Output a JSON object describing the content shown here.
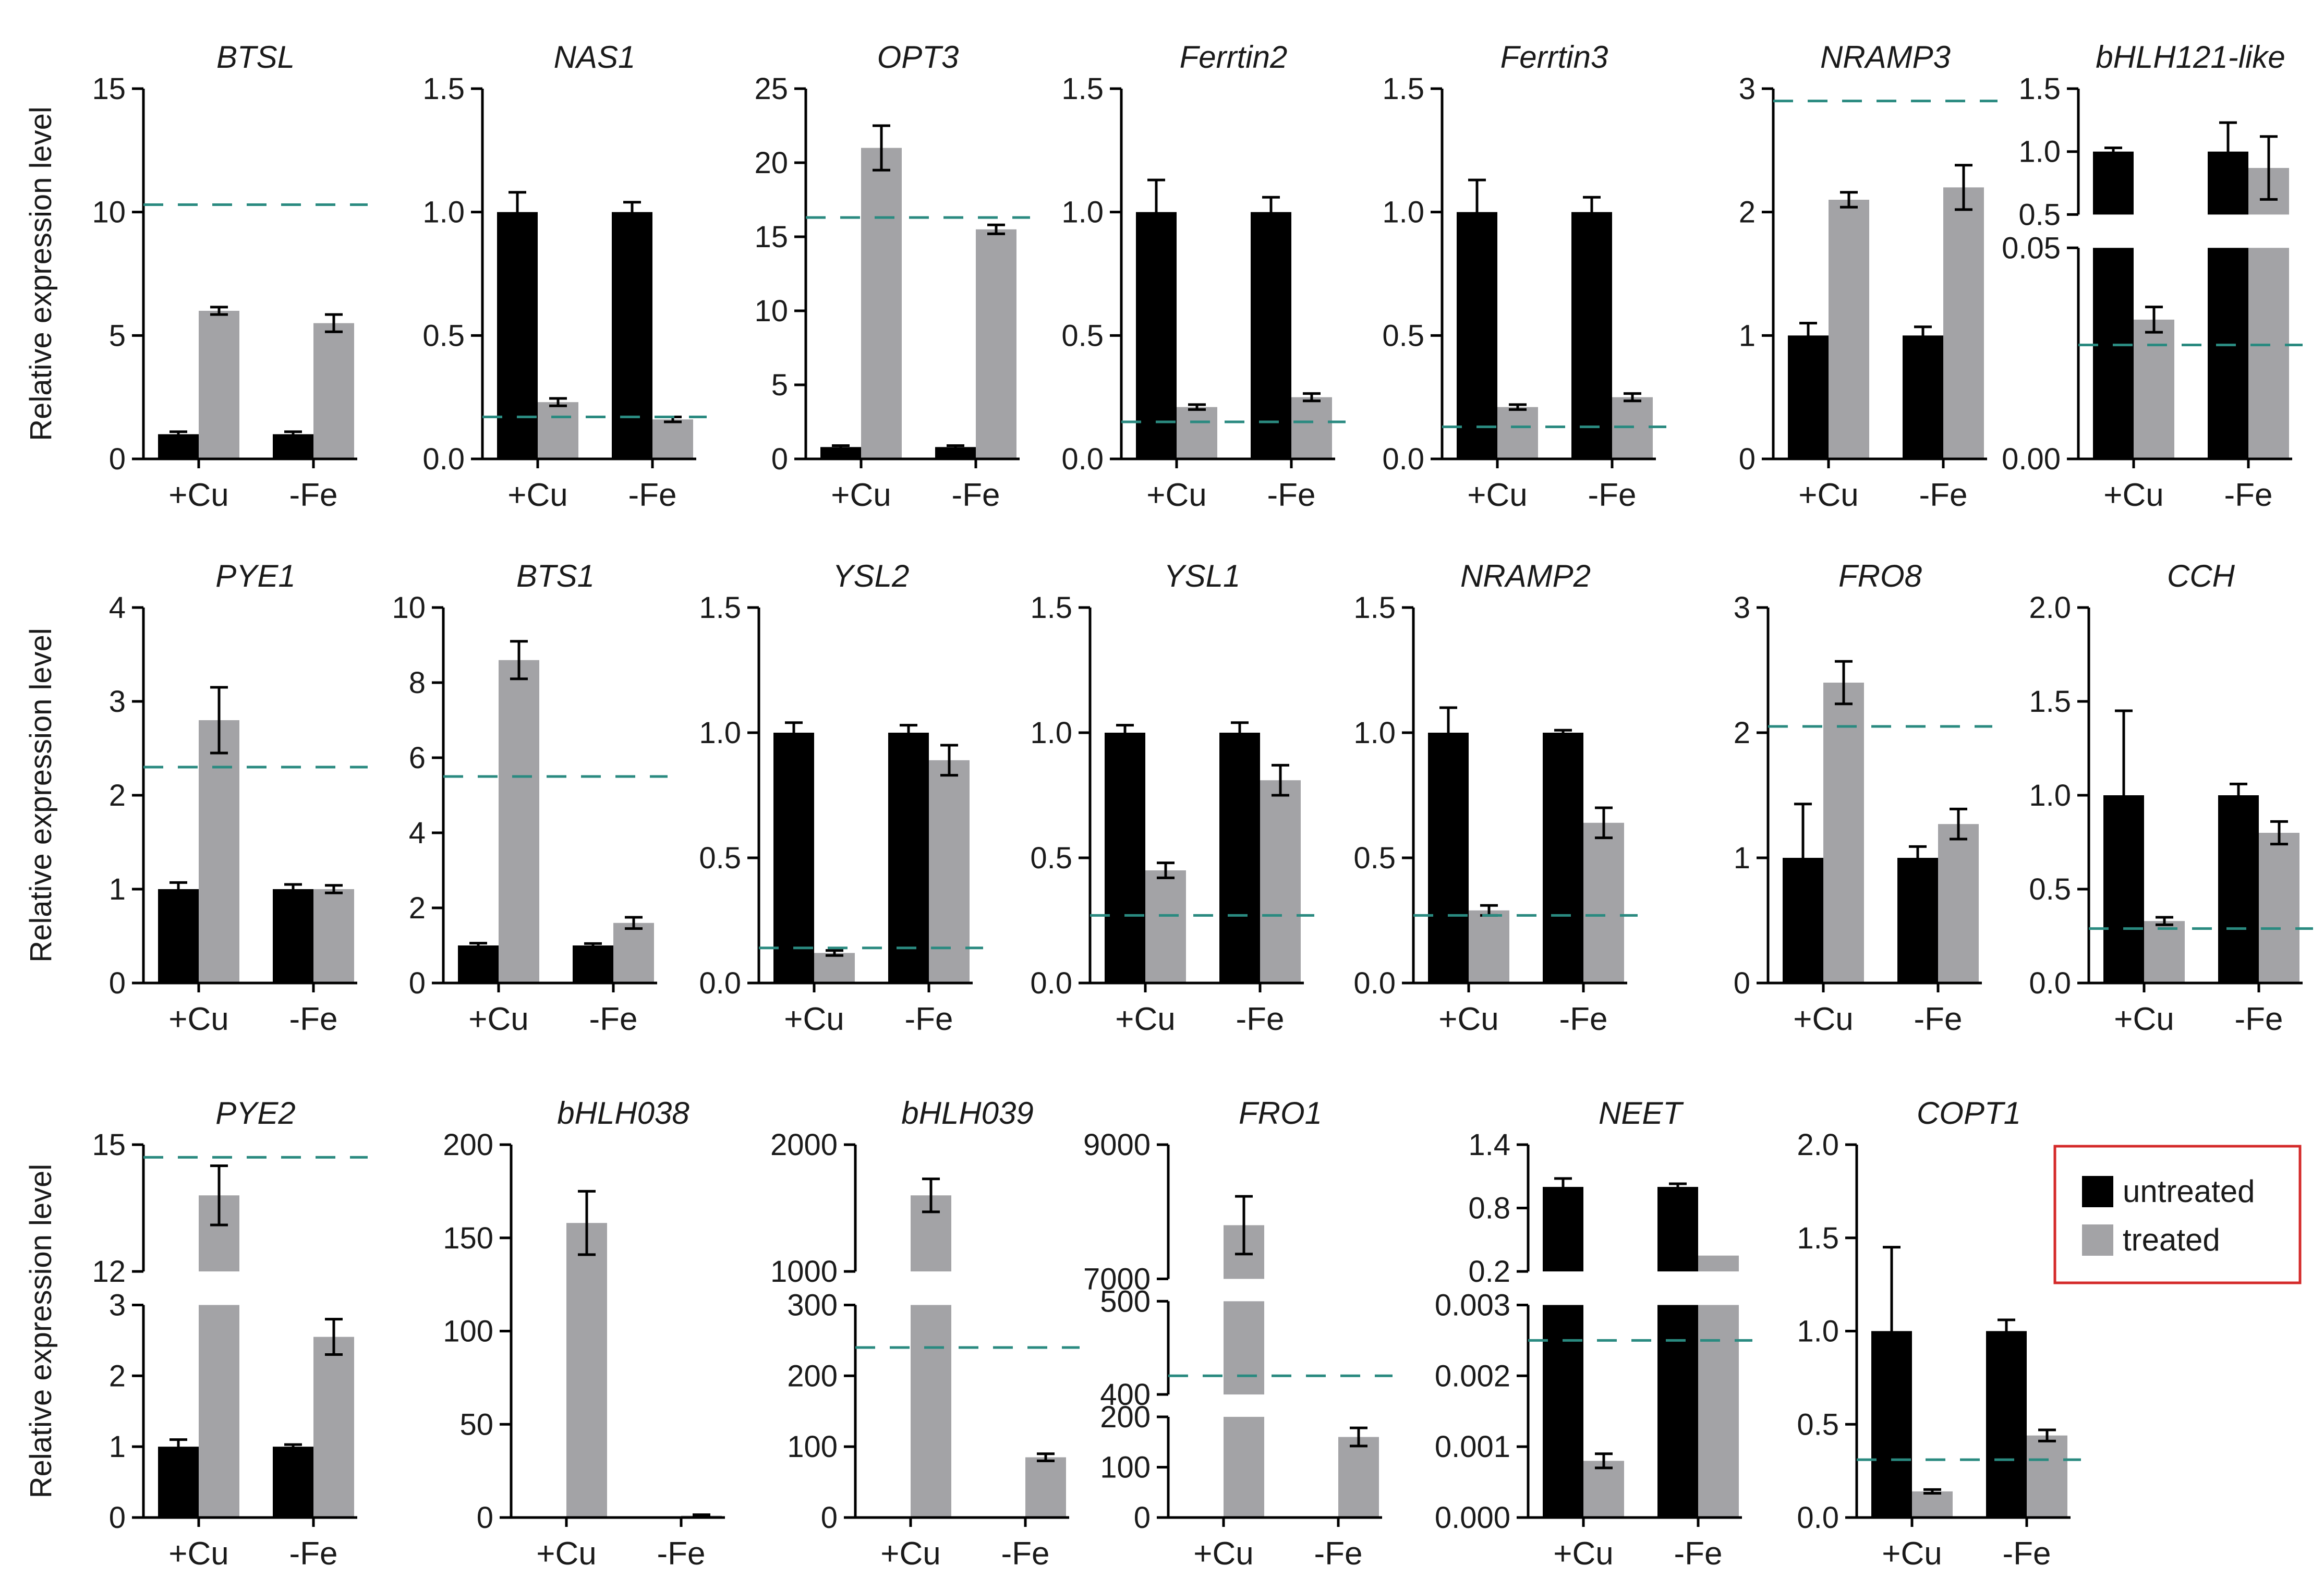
{
  "figure": {
    "ylabel": "Relative expression level",
    "legend": {
      "items": [
        "untreated",
        "treated"
      ]
    },
    "colors": {
      "untreated": "#000000",
      "treated": "#a3a3a6",
      "dash": "#2a8a80",
      "legend_border": "#d42a2a"
    },
    "categories": [
      "+Cu",
      "-Fe"
    ]
  },
  "chart_data": [
    {
      "type": "bar",
      "title": "BTSL",
      "categories": [
        "+Cu",
        "-Fe"
      ],
      "series": [
        {
          "name": "untreated",
          "values": [
            1,
            1
          ],
          "err": [
            0.1,
            0.1
          ]
        },
        {
          "name": "treated",
          "values": [
            6.0,
            5.5
          ],
          "err": [
            0.15,
            0.35
          ]
        }
      ],
      "ylim": [
        0,
        15
      ],
      "ticks": [
        "0",
        "5",
        "10",
        "15"
      ],
      "reference_line": 10.3,
      "ylabel": "Relative expression level"
    },
    {
      "type": "bar",
      "title": "NAS1",
      "categories": [
        "+Cu",
        "-Fe"
      ],
      "series": [
        {
          "name": "untreated",
          "values": [
            1.0,
            1.0
          ],
          "err": [
            0.08,
            0.04
          ]
        },
        {
          "name": "treated",
          "values": [
            0.23,
            0.16
          ],
          "err": [
            0.015,
            0.01
          ]
        }
      ],
      "ylim": [
        0,
        1.5
      ],
      "ticks": [
        "0.0",
        "0.5",
        "1.0",
        "1.5"
      ],
      "reference_line": 0.17
    },
    {
      "type": "bar",
      "title": "OPT3",
      "categories": [
        "+Cu",
        "-Fe"
      ],
      "series": [
        {
          "name": "untreated",
          "values": [
            0.8,
            0.8
          ],
          "err": [
            0.1,
            0.1
          ]
        },
        {
          "name": "treated",
          "values": [
            21,
            15.5
          ],
          "err": [
            1.5,
            0.3
          ]
        }
      ],
      "ylim": [
        0,
        25
      ],
      "ticks": [
        "0",
        "5",
        "10",
        "15",
        "20",
        "25"
      ],
      "reference_line": 16.3
    },
    {
      "type": "bar",
      "title": "Ferrtin2",
      "categories": [
        "+Cu",
        "-Fe"
      ],
      "series": [
        {
          "name": "untreated",
          "values": [
            1.0,
            1.0
          ],
          "err": [
            0.13,
            0.06
          ]
        },
        {
          "name": "treated",
          "values": [
            0.21,
            0.25
          ],
          "err": [
            0.01,
            0.015
          ]
        }
      ],
      "ylim": [
        0,
        1.5
      ],
      "ticks": [
        "0.0",
        "0.5",
        "1.0",
        "1.5"
      ],
      "reference_line": 0.15
    },
    {
      "type": "bar",
      "title": "Ferrtin3",
      "categories": [
        "+Cu",
        "-Fe"
      ],
      "series": [
        {
          "name": "untreated",
          "values": [
            1.0,
            1.0
          ],
          "err": [
            0.13,
            0.06
          ]
        },
        {
          "name": "treated",
          "values": [
            0.21,
            0.25
          ],
          "err": [
            0.01,
            0.015
          ]
        }
      ],
      "ylim": [
        0,
        1.5
      ],
      "ticks": [
        "0.0",
        "0.5",
        "1.0",
        "1.5"
      ],
      "reference_line": 0.13
    },
    {
      "type": "bar",
      "title": "NRAMP3",
      "categories": [
        "+Cu",
        "-Fe"
      ],
      "series": [
        {
          "name": "untreated",
          "values": [
            1.0,
            1.0
          ],
          "err": [
            0.1,
            0.07
          ]
        },
        {
          "name": "treated",
          "values": [
            2.1,
            2.2
          ],
          "err": [
            0.06,
            0.18
          ]
        }
      ],
      "ylim": [
        0,
        3
      ],
      "ticks": [
        "0",
        "1",
        "2",
        "3"
      ],
      "reference_line": 2.9
    },
    {
      "type": "bar",
      "title": "bHLH121-like",
      "categories": [
        "+Cu",
        "-Fe"
      ],
      "series": [
        {
          "name": "untreated",
          "values": [
            1.0,
            1.0
          ],
          "err": [
            0.03,
            0.23
          ]
        },
        {
          "name": "treated",
          "values": [
            0.033,
            0.87
          ],
          "err": [
            0.003,
            0.25
          ]
        }
      ],
      "axis_break": true,
      "ylim_lower": [
        0,
        0.05
      ],
      "ylim_upper": [
        0.5,
        1.5
      ],
      "ticks": [
        "0.00",
        "0.05",
        "0.5",
        "1.0",
        "1.5"
      ],
      "reference_line": 0.027
    },
    {
      "type": "bar",
      "title": "PYE1",
      "categories": [
        "+Cu",
        "-Fe"
      ],
      "series": [
        {
          "name": "untreated",
          "values": [
            1.0,
            1.0
          ],
          "err": [
            0.07,
            0.05
          ]
        },
        {
          "name": "treated",
          "values": [
            2.8,
            1.0
          ],
          "err": [
            0.35,
            0.04
          ]
        }
      ],
      "ylim": [
        0,
        4
      ],
      "ticks": [
        "0",
        "1",
        "2",
        "3",
        "4"
      ],
      "reference_line": 2.3,
      "ylabel": "Relative expression level"
    },
    {
      "type": "bar",
      "title": "BTS1",
      "categories": [
        "+Cu",
        "-Fe"
      ],
      "series": [
        {
          "name": "untreated",
          "values": [
            1.0,
            1.0
          ],
          "err": [
            0.06,
            0.05
          ]
        },
        {
          "name": "treated",
          "values": [
            8.6,
            1.6
          ],
          "err": [
            0.5,
            0.15
          ]
        }
      ],
      "ylim": [
        0,
        10
      ],
      "ticks": [
        "0",
        "2",
        "4",
        "6",
        "8",
        "10"
      ],
      "reference_line": 5.5
    },
    {
      "type": "bar",
      "title": "YSL2",
      "categories": [
        "+Cu",
        "-Fe"
      ],
      "series": [
        {
          "name": "untreated",
          "values": [
            1.0,
            1.0
          ],
          "err": [
            0.04,
            0.03
          ]
        },
        {
          "name": "treated",
          "values": [
            0.12,
            0.89
          ],
          "err": [
            0.01,
            0.06
          ]
        }
      ],
      "ylim": [
        0,
        1.5
      ],
      "ticks": [
        "0.0",
        "0.5",
        "1.0",
        "1.5"
      ],
      "reference_line": 0.14
    },
    {
      "type": "bar",
      "title": "YSL1",
      "categories": [
        "+Cu",
        "-Fe"
      ],
      "series": [
        {
          "name": "untreated",
          "values": [
            1.0,
            1.0
          ],
          "err": [
            0.03,
            0.04
          ]
        },
        {
          "name": "treated",
          "values": [
            0.45,
            0.81
          ],
          "err": [
            0.03,
            0.06
          ]
        }
      ],
      "ylim": [
        0,
        1.5
      ],
      "ticks": [
        "0.0",
        "0.5",
        "1.0",
        "1.5"
      ],
      "reference_line": 0.27
    },
    {
      "type": "bar",
      "title": "NRAMP2",
      "categories": [
        "+Cu",
        "-Fe"
      ],
      "series": [
        {
          "name": "untreated",
          "values": [
            1.0,
            1.0
          ],
          "err": [
            0.1,
            0.01
          ]
        },
        {
          "name": "treated",
          "values": [
            0.29,
            0.64
          ],
          "err": [
            0.02,
            0.06
          ]
        }
      ],
      "ylim": [
        0,
        1.5
      ],
      "ticks": [
        "0.0",
        "0.5",
        "1.0",
        "1.5"
      ],
      "reference_line": 0.27
    },
    {
      "type": "bar",
      "title": "FRO8",
      "categories": [
        "+Cu",
        "-Fe"
      ],
      "series": [
        {
          "name": "untreated",
          "values": [
            1.0,
            1.0
          ],
          "err": [
            0.43,
            0.09
          ]
        },
        {
          "name": "treated",
          "values": [
            2.4,
            1.27
          ],
          "err": [
            0.17,
            0.12
          ]
        }
      ],
      "ylim": [
        0,
        3
      ],
      "ticks": [
        "0",
        "1",
        "2",
        "3"
      ],
      "reference_line": 2.05
    },
    {
      "type": "bar",
      "title": "CCH",
      "categories": [
        "+Cu",
        "-Fe"
      ],
      "series": [
        {
          "name": "untreated",
          "values": [
            1.0,
            1.0
          ],
          "err": [
            0.45,
            0.06
          ]
        },
        {
          "name": "treated",
          "values": [
            0.33,
            0.8
          ],
          "err": [
            0.02,
            0.06
          ]
        }
      ],
      "ylim": [
        0,
        2
      ],
      "ticks": [
        "0.0",
        "0.5",
        "1.0",
        "1.5",
        "2.0"
      ],
      "reference_line": 0.29
    },
    {
      "type": "bar",
      "title": "PYE2",
      "categories": [
        "+Cu",
        "-Fe"
      ],
      "series": [
        {
          "name": "untreated",
          "values": [
            1.0,
            1.0
          ],
          "err": [
            0.1,
            0.03
          ]
        },
        {
          "name": "treated",
          "values": [
            13.8,
            2.55
          ],
          "err": [
            0.7,
            0.25
          ]
        }
      ],
      "axis_break": true,
      "ylim_lower": [
        0,
        3
      ],
      "ylim_upper": [
        12,
        15
      ],
      "ticks": [
        "0",
        "1",
        "2",
        "3",
        "12",
        "15"
      ],
      "reference_line": 14.7,
      "ylabel": "Relative expression level"
    },
    {
      "type": "bar",
      "title": "bHLH038",
      "categories": [
        "+Cu",
        "-Fe"
      ],
      "series": [
        {
          "name": "untreated",
          "values": [
            0,
            0
          ],
          "err": [
            0,
            0
          ]
        },
        {
          "name": "treated",
          "values": [
            158,
            1
          ],
          "err": [
            17,
            0.5
          ]
        }
      ],
      "ylim": [
        0,
        200
      ],
      "ticks": [
        "0",
        "50",
        "100",
        "150",
        "200"
      ]
    },
    {
      "type": "bar",
      "title": "bHLH039",
      "categories": [
        "+Cu",
        "-Fe"
      ],
      "series": [
        {
          "name": "untreated",
          "values": [
            0,
            0
          ],
          "err": [
            0,
            0
          ]
        },
        {
          "name": "treated",
          "values": [
            1600,
            85
          ],
          "err": [
            130,
            5
          ]
        }
      ],
      "axis_break": true,
      "ylim_lower": [
        0,
        300
      ],
      "ylim_upper": [
        1000,
        2000
      ],
      "ticks": [
        "0",
        "100",
        "200",
        "300",
        "1000",
        "2000"
      ],
      "reference_line": 240
    },
    {
      "type": "bar",
      "title": "FRO1",
      "categories": [
        "+Cu",
        "-Fe"
      ],
      "series": [
        {
          "name": "untreated",
          "values": [
            0,
            0
          ],
          "err": [
            0,
            0
          ]
        },
        {
          "name": "treated",
          "values": [
            7800,
            160
          ],
          "err": [
            430,
            18
          ]
        }
      ],
      "axis_break": true,
      "ylim_lower": [
        0,
        200
      ],
      "ylim_middle": [
        400,
        500
      ],
      "ylim_upper": [
        7000,
        9000
      ],
      "ticks": [
        "0",
        "100",
        "200",
        "400",
        "500",
        "7000",
        "9000"
      ],
      "reference_line": 420
    },
    {
      "type": "bar",
      "title": "NEET",
      "categories": [
        "+Cu",
        "-Fe"
      ],
      "series": [
        {
          "name": "untreated",
          "values": [
            1.0,
            1.0
          ],
          "err": [
            0.08,
            0.03
          ]
        },
        {
          "name": "treated",
          "values": [
            0.0008,
            0.35
          ],
          "err": [
            0.0001,
            0
          ]
        }
      ],
      "axis_break": true,
      "ylim_lower": [
        0,
        0.003
      ],
      "ylim_upper": [
        0.2,
        1.4
      ],
      "ticks": [
        "0.000",
        "0.001",
        "0.002",
        "0.003",
        "0.2",
        "0.8",
        "1.4"
      ],
      "reference_line": 0.0025
    },
    {
      "type": "bar",
      "title": "COPT1",
      "categories": [
        "+Cu",
        "-Fe"
      ],
      "series": [
        {
          "name": "untreated",
          "values": [
            1.0,
            1.0
          ],
          "err": [
            0.45,
            0.06
          ]
        },
        {
          "name": "treated",
          "values": [
            0.14,
            0.44
          ],
          "err": [
            0.01,
            0.03
          ]
        }
      ],
      "ylim": [
        0,
        2
      ],
      "ticks": [
        "0.0",
        "0.5",
        "1.0",
        "1.5",
        "2.0"
      ],
      "reference_line": 0.31
    }
  ]
}
